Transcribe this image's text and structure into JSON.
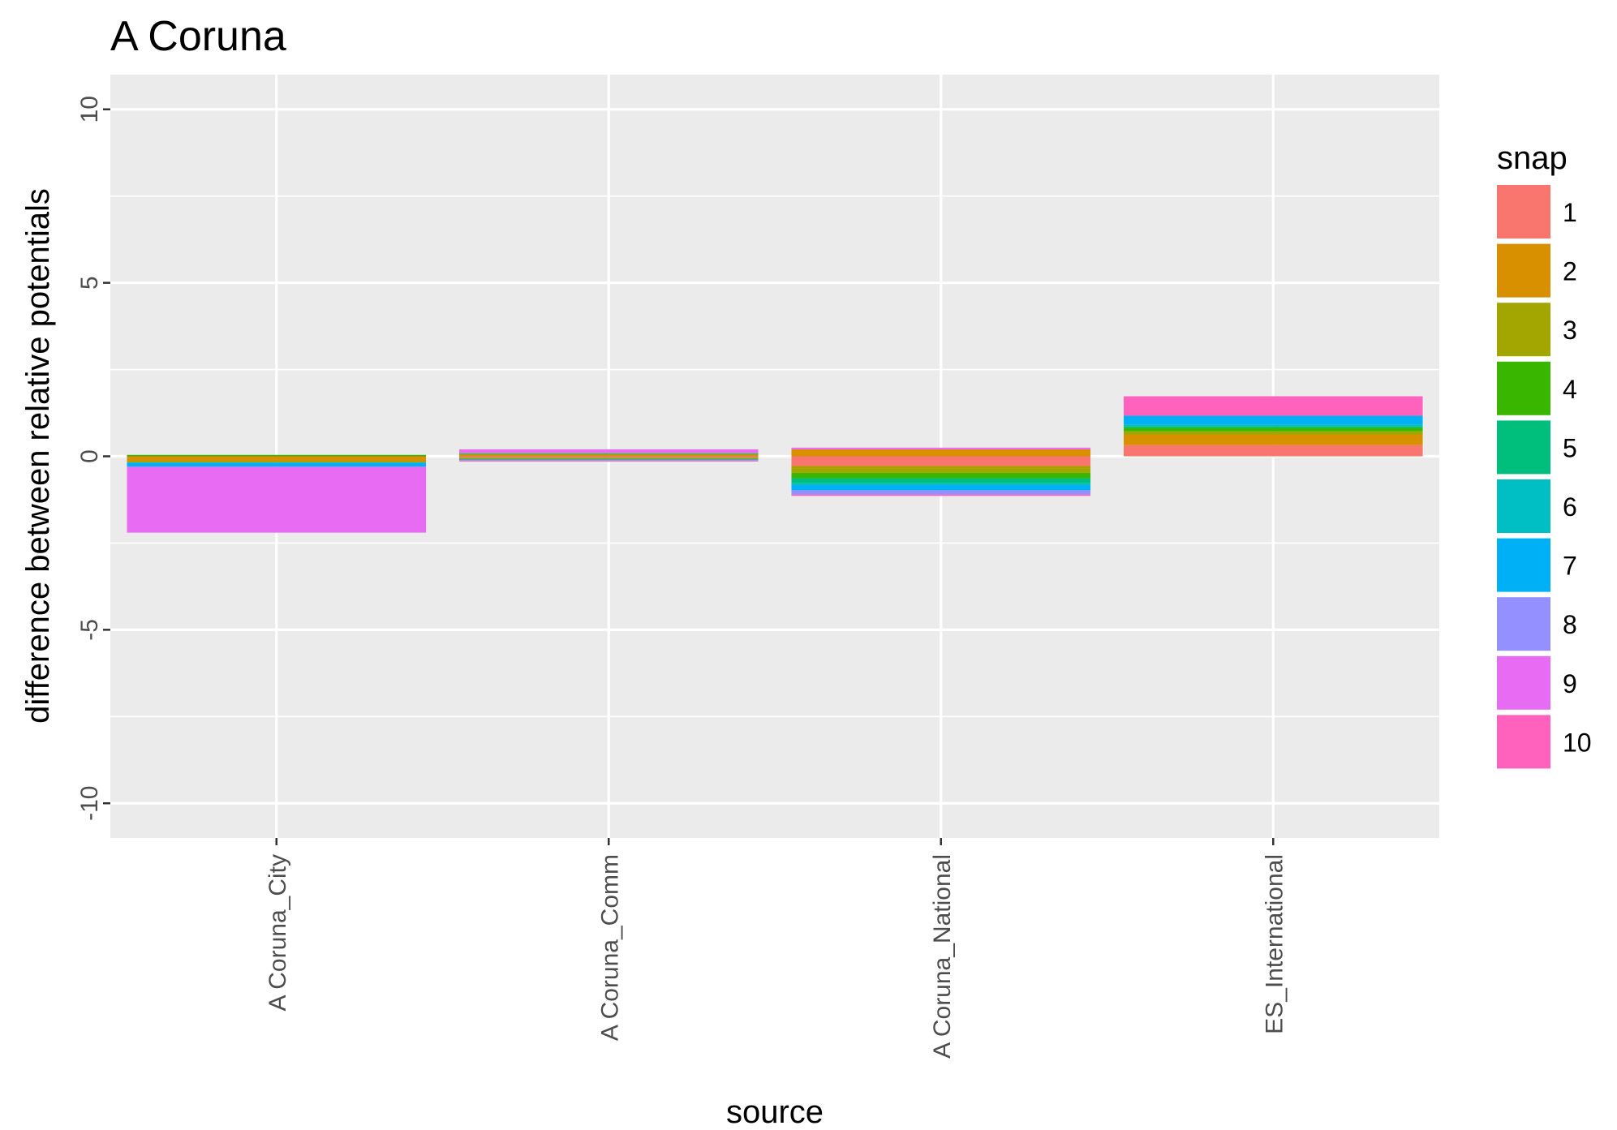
{
  "chart_data": {
    "type": "bar",
    "stacked": true,
    "title": "A Coruna",
    "xlabel": "source",
    "ylabel": "difference between relative potentials",
    "categories": [
      "A Coruna_City",
      "A Coruna_Comm",
      "A Coruna_National",
      "ES_International"
    ],
    "ylim": [
      -11,
      11
    ],
    "yticks": [
      -10,
      -5,
      0,
      5,
      10
    ],
    "ytick_labels": [
      "-10",
      "-5",
      "0",
      "5",
      "10"
    ],
    "grid": true,
    "panel_background": "#EBEBEB",
    "legend": {
      "title": "snap",
      "position": "right"
    },
    "series": [
      {
        "name": "1",
        "color": "#F8766D",
        "values": [
          0.0,
          -0.04,
          -0.28,
          0.32
        ]
      },
      {
        "name": "2",
        "color": "#D89000",
        "values": [
          -0.14,
          0.05,
          0.2,
          0.3
        ]
      },
      {
        "name": "3",
        "color": "#A3A500",
        "values": [
          -0.04,
          -0.03,
          -0.2,
          0.1
        ]
      },
      {
        "name": "4",
        "color": "#39B600",
        "values": [
          0.04,
          0.03,
          -0.15,
          0.1
        ]
      },
      {
        "name": "5",
        "color": "#00BF7D",
        "values": [
          0.0,
          -0.02,
          -0.15,
          0.05
        ]
      },
      {
        "name": "6",
        "color": "#00BFC4",
        "values": [
          0.0,
          0.0,
          -0.05,
          0.05
        ]
      },
      {
        "name": "7",
        "color": "#00B0F6",
        "values": [
          -0.12,
          -0.02,
          -0.15,
          0.25
        ]
      },
      {
        "name": "8",
        "color": "#9590FF",
        "values": [
          0.0,
          0.02,
          -0.12,
          0.0
        ]
      },
      {
        "name": "9",
        "color": "#E76BF3",
        "values": [
          -1.9,
          0.1,
          0.05,
          0.0
        ]
      },
      {
        "name": "10",
        "color": "#FF62BC",
        "values": [
          0.0,
          -0.04,
          -0.04,
          0.56
        ]
      }
    ]
  }
}
